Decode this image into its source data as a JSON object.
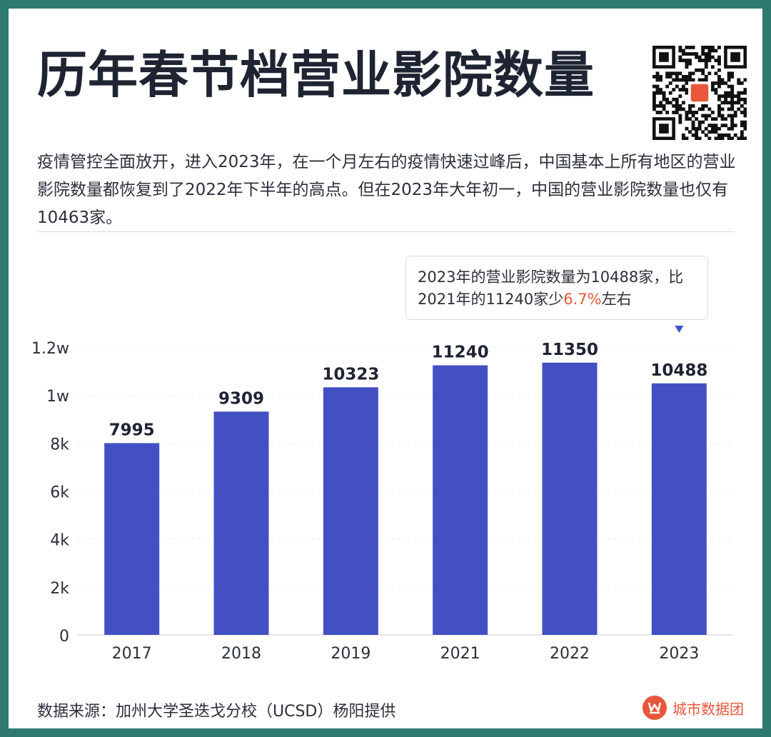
{
  "title": "历年春节档营业影院数量",
  "description": "疫情管控全面放开，进入2023年，在一个月左右的疫情快速过峰后，中国基本上所有地区的营业影院数量都恢复到了2022年下半年的高点。但在2023年大年初一，中国的营业影院数量也仅有10463家。",
  "annotation": {
    "line1": "2023年的营业影院数量为10488家，比",
    "line2_prefix": "2021年的11240家少",
    "highlight": "6.7%",
    "line2_suffix": "左右",
    "highlight_color": "#e8573b"
  },
  "chart_data": {
    "type": "bar",
    "categories": [
      "2017",
      "2018",
      "2019",
      "2021",
      "2022",
      "2023"
    ],
    "values": [
      7995,
      9309,
      10323,
      11240,
      11350,
      10488
    ],
    "ylim": [
      0,
      12000
    ],
    "yticks": [
      {
        "value": 0,
        "label": "0"
      },
      {
        "value": 2000,
        "label": "2k"
      },
      {
        "value": 4000,
        "label": "4k"
      },
      {
        "value": 6000,
        "label": "6k"
      },
      {
        "value": 8000,
        "label": "8k"
      },
      {
        "value": 10000,
        "label": "1w"
      },
      {
        "value": 12000,
        "label": "1.2w"
      }
    ],
    "grid": true,
    "bar_color": "#4350c4",
    "marker_category": "2023"
  },
  "source": "数据来源：加州大学圣迭戈分校（UCSD）杨阳提供",
  "brand": {
    "name": "城市数据团",
    "logo_icon": "city-data-logo-icon",
    "color": "#e8573b"
  },
  "qr_icon": "qr-code-icon"
}
